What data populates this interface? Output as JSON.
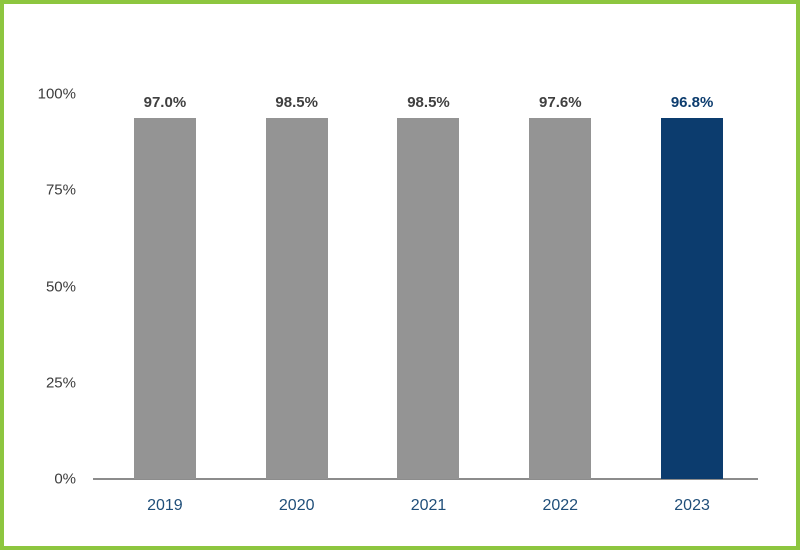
{
  "chart_data": {
    "type": "bar",
    "categories": [
      "2019",
      "2020",
      "2021",
      "2022",
      "2023"
    ],
    "values": [
      97.0,
      98.5,
      98.5,
      97.6,
      96.8
    ],
    "value_labels": [
      "97.0%",
      "98.5%",
      "98.5%",
      "97.6%",
      "96.8%"
    ],
    "title": "",
    "xlabel": "",
    "ylabel": "",
    "ylim": [
      0,
      100
    ],
    "yticks": [
      0,
      25,
      50,
      75,
      100
    ],
    "ytick_labels": [
      "0%",
      "25%",
      "50%",
      "75%",
      "100%"
    ],
    "grid": false,
    "legend": "none",
    "highlight_index": 4,
    "colors": {
      "bar_default": "#949494",
      "bar_highlight": "#0c3c6e",
      "value_label_default": "#3f3f3f",
      "value_label_highlight": "#0c3c6e",
      "x_label": "#1f4e79",
      "axis_line": "#8c8c8c",
      "tick_label": "#3c3c3c",
      "border": "#8dc63f",
      "background": "#ffffff"
    }
  }
}
